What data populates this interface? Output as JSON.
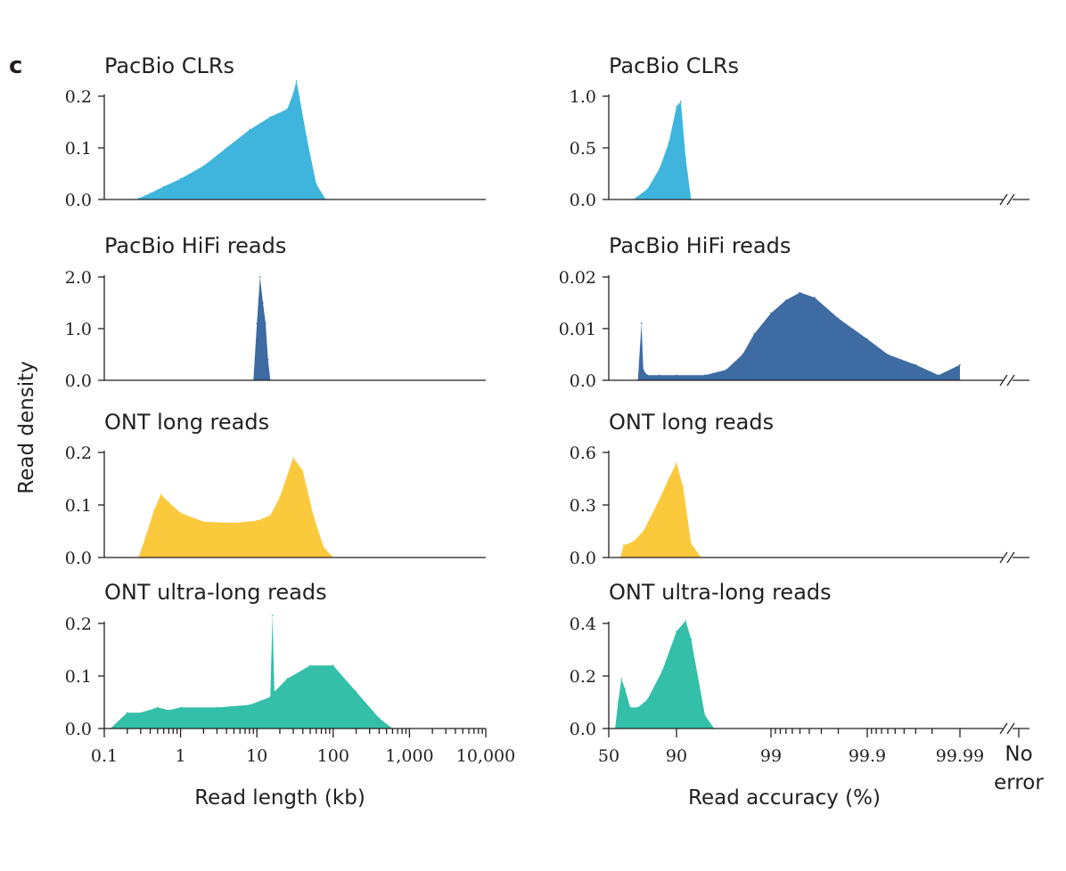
{
  "panel_label": "c",
  "y_axis_label": "Read density",
  "x_axis_labels": {
    "length": "Read length (kb)",
    "accuracy": "Read accuracy (%)"
  },
  "colors": {
    "pacbio_clr": "#3fb5de",
    "pacbio_hifi": "#3d6ba2",
    "ont_long": "#fbc93c",
    "ont_ultra": "#33bfa8"
  },
  "length_ticks": [
    "0.1",
    "1",
    "10",
    "100",
    "1,000",
    "10,000"
  ],
  "accuracy_ticks": [
    "50",
    "90",
    "99",
    "99.9",
    "99.99",
    "No",
    "error"
  ],
  "chart_data": [
    {
      "type": "area",
      "title": "PacBio CLRs",
      "xlabel": "Read length (kb)",
      "ylabel": "Read density",
      "x_scale": "log",
      "ylim": [
        0,
        0.2
      ],
      "yticks": [
        "0.0",
        "0.1",
        "0.2"
      ],
      "color": "#3fb5de",
      "x": [
        0.28,
        0.4,
        0.6,
        1,
        2,
        4,
        8,
        15,
        25,
        30,
        33,
        36,
        45,
        60,
        80
      ],
      "y": [
        0.002,
        0.012,
        0.025,
        0.04,
        0.065,
        0.1,
        0.135,
        0.16,
        0.175,
        0.205,
        0.23,
        0.2,
        0.12,
        0.03,
        0.0
      ]
    },
    {
      "type": "area",
      "title": "PacBio HiFi reads",
      "xlabel": "Read length (kb)",
      "ylabel": "Read density",
      "x_scale": "log",
      "ylim": [
        0,
        2.0
      ],
      "yticks": [
        "0.0",
        "1.0",
        "2.0"
      ],
      "color": "#3d6ba2",
      "x": [
        9,
        10,
        11,
        12,
        13,
        14,
        15
      ],
      "y": [
        0.0,
        1.1,
        2.0,
        1.5,
        1.1,
        0.4,
        0.0
      ]
    },
    {
      "type": "area",
      "title": "ONT long reads",
      "xlabel": "Read length (kb)",
      "ylabel": "Read density",
      "x_scale": "log",
      "ylim": [
        0,
        0.2
      ],
      "yticks": [
        "0.0",
        "0.1",
        "0.2"
      ],
      "color": "#fbc93c",
      "x": [
        0.28,
        0.35,
        0.45,
        0.55,
        0.7,
        1,
        2,
        5,
        10,
        15,
        20,
        30,
        40,
        55,
        75,
        100
      ],
      "y": [
        0.0,
        0.04,
        0.09,
        0.12,
        0.105,
        0.085,
        0.068,
        0.066,
        0.07,
        0.08,
        0.115,
        0.19,
        0.165,
        0.08,
        0.02,
        0.0
      ]
    },
    {
      "type": "area",
      "title": "ONT ultra-long reads",
      "xlabel": "Read length (kb)",
      "ylabel": "Read density",
      "x_scale": "log",
      "ylim": [
        0,
        0.2
      ],
      "yticks": [
        "0.0",
        "0.1",
        "0.2"
      ],
      "color": "#33bfa8",
      "x": [
        0.12,
        0.2,
        0.3,
        0.5,
        0.7,
        1,
        3,
        8,
        15,
        16,
        17,
        25,
        50,
        100,
        200,
        400,
        600
      ],
      "y": [
        0.0,
        0.03,
        0.03,
        0.04,
        0.035,
        0.04,
        0.04,
        0.045,
        0.06,
        0.215,
        0.07,
        0.095,
        0.12,
        0.12,
        0.07,
        0.02,
        0.0
      ]
    },
    {
      "type": "area",
      "title": "PacBio CLRs",
      "xlabel": "Read accuracy (%)",
      "ylabel": "Read density",
      "x_scale": "phred",
      "ylim": [
        0,
        1.0
      ],
      "yticks": [
        "0.0",
        "0.5",
        "1.0"
      ],
      "color": "#3fb5de",
      "x": [
        72,
        80,
        85,
        88,
        90,
        91,
        92,
        93
      ],
      "y": [
        0.0,
        0.1,
        0.3,
        0.55,
        0.9,
        0.95,
        0.4,
        0.0
      ]
    },
    {
      "type": "area",
      "title": "PacBio HiFi reads",
      "xlabel": "Read accuracy (%)",
      "ylabel": "Read density",
      "x_scale": "phred",
      "ylim": [
        0,
        0.02
      ],
      "yticks": [
        "0.0",
        "0.01",
        "0.02"
      ],
      "color": "#3d6ba2",
      "x": [
        75,
        77,
        78,
        80,
        85,
        90,
        95,
        97,
        98,
        98.5,
        99,
        99.3,
        99.5,
        99.65,
        99.8,
        99.9,
        99.94,
        99.97,
        99.983,
        99.99,
        99.995
      ],
      "y": [
        0.0,
        0.011,
        0.002,
        0.001,
        0.001,
        0.001,
        0.001,
        0.002,
        0.005,
        0.009,
        0.013,
        0.0155,
        0.017,
        0.016,
        0.012,
        0.008,
        0.005,
        0.003,
        0.001,
        0.003,
        0.0
      ]
    },
    {
      "type": "area",
      "title": "ONT long reads",
      "xlabel": "Read accuracy (%)",
      "ylabel": "Read density",
      "x_scale": "phred",
      "ylim": [
        0,
        0.6
      ],
      "yticks": [
        "0.0",
        "0.3",
        "0.6"
      ],
      "color": "#fbc93c",
      "x": [
        62,
        65,
        72,
        78,
        84,
        88,
        90,
        91.5,
        93,
        94.5
      ],
      "y": [
        0.0,
        0.07,
        0.09,
        0.15,
        0.3,
        0.45,
        0.54,
        0.4,
        0.08,
        0.0
      ]
    },
    {
      "type": "area",
      "title": "ONT ultra-long reads",
      "xlabel": "Read accuracy (%)",
      "ylabel": "Read density",
      "x_scale": "phred",
      "ylim": [
        0,
        0.4
      ],
      "yticks": [
        "0.0",
        "0.2",
        "0.4"
      ],
      "color": "#33bfa8",
      "x": [
        57,
        60,
        63,
        66,
        70,
        75,
        80,
        86,
        90,
        92,
        93,
        95,
        96
      ],
      "y": [
        0.0,
        0.1,
        0.19,
        0.15,
        0.08,
        0.08,
        0.11,
        0.22,
        0.37,
        0.41,
        0.34,
        0.05,
        0.0
      ]
    }
  ]
}
